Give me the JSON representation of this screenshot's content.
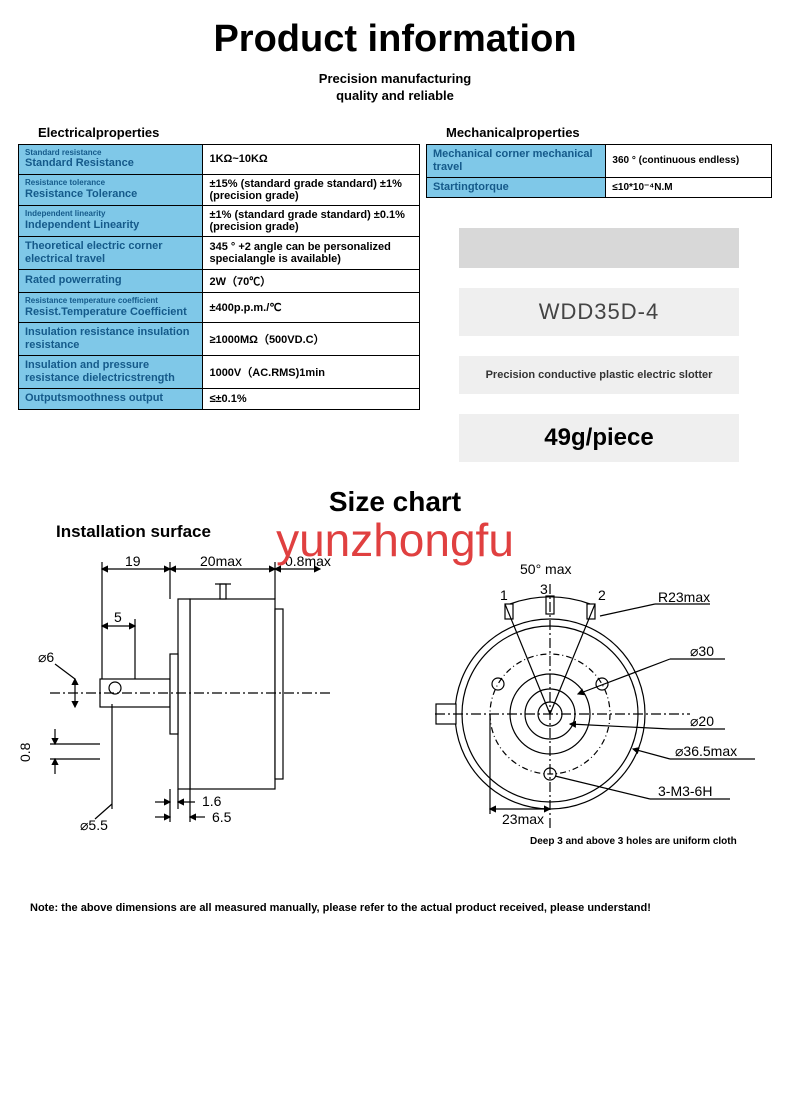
{
  "title": "Product information",
  "subtitle_l1": "Precision manufacturing",
  "subtitle_l2": "quality and reliable",
  "elec_heading": "Electricalproperties",
  "mech_heading": "Mechanicalproperties",
  "elec_rows": [
    {
      "sub": "Standard resistance",
      "main": "Standard Resistance",
      "val": "1KΩ~10KΩ"
    },
    {
      "sub": "Resistance tolerance",
      "main": "Resistance Tolerance",
      "val": "±15% (standard grade standard) ±1% (precision grade)"
    },
    {
      "sub": "Independent linearity",
      "main": "Independent Linearity",
      "val": "±1% (standard grade standard) ±0.1% (precision grade)"
    },
    {
      "sub": "",
      "main": "Theoretical electric corner electrical travel",
      "val": "345 ° +2 angle can be personalized specialangle is available)"
    },
    {
      "sub": "",
      "main": "Rated powerrating",
      "val": "2W（70℃）"
    },
    {
      "sub": "Resistance temperature coefficient",
      "main": "Resist.Temperature Coefficient",
      "val": "±400p.p.m./℃"
    },
    {
      "sub": "",
      "main": "Insulation resistance insulation resistance",
      "val": "≥1000MΩ（500VD.C）"
    },
    {
      "sub": "",
      "main": "Insulation and pressure resistance dielectricstrength",
      "val": "1000V（AC.RMS)1min"
    },
    {
      "sub": "",
      "main": "Outputsmoothness output",
      "val": "≤±0.1%"
    }
  ],
  "mech_rows": [
    {
      "main": "Mechanical corner mechanical travel",
      "val": "360 ° (continuous endless)"
    },
    {
      "main": "Startingtorque",
      "val": "≤10*10⁻⁴N.M"
    }
  ],
  "model": "WDD35D-4",
  "desc": "Precision conductive plastic electric slotter",
  "weight": "49g/piece",
  "size_title": "Size chart",
  "install_label": "Installation surface",
  "note": "Note: the above dimensions are all measured manually, please refer to the actual product received, please understand!",
  "watermark": "yunzhongfu",
  "diagram_left": {
    "dims": {
      "d19": "19",
      "d20max": "20max",
      "d08max": "0.8max",
      "d5": "5",
      "phi6": "⌀6",
      "d08": "0.8",
      "phi55": "⌀5.5",
      "d16": "1.6",
      "d65": "6.5"
    }
  },
  "diagram_right": {
    "dims": {
      "d50": "50° max",
      "n1": "1",
      "n3": "3",
      "n2": "2",
      "r23": "R23max",
      "phi30": "⌀30",
      "phi20": "⌀20",
      "phi365": "⌀36.5max",
      "d23max": "23max",
      "m3": "3-M3-6H",
      "deep": "Deep 3 and above 3 holes are uniform cloth"
    }
  }
}
